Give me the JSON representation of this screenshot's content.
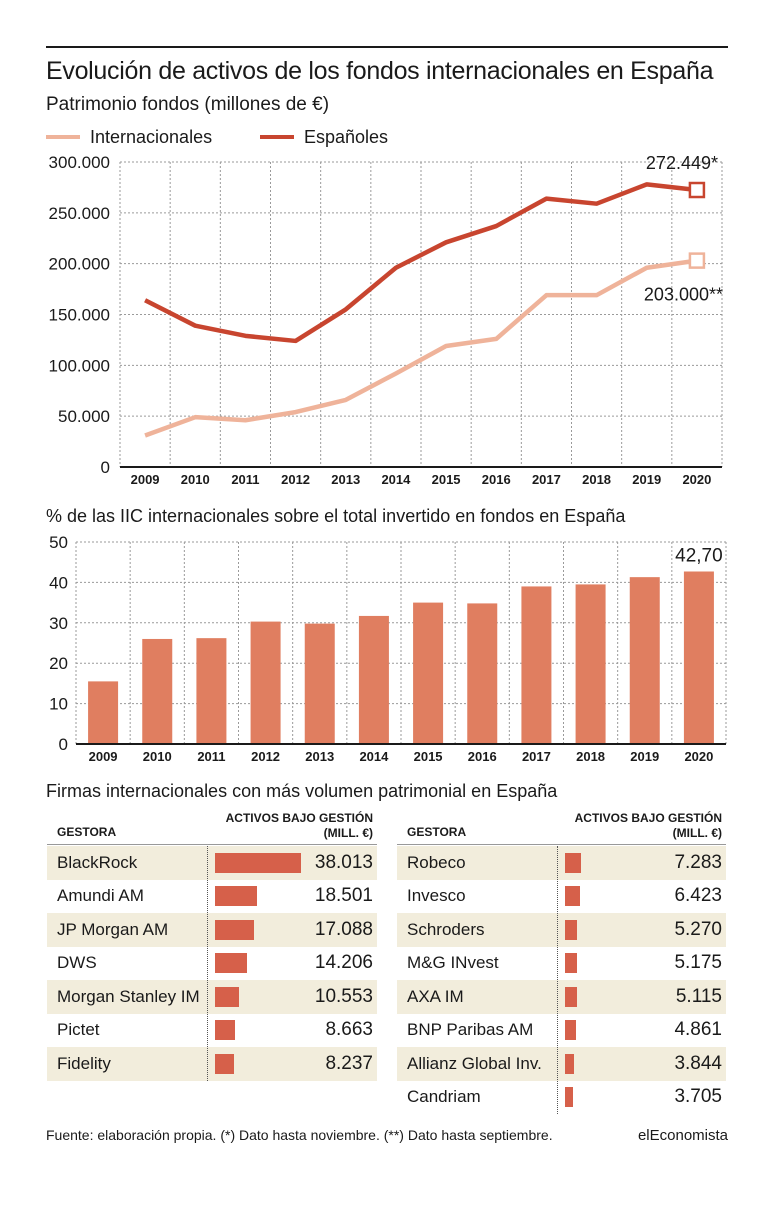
{
  "title": "Evolución de activos de los fondos internacionales en España",
  "subtitle": "Patrimonio fondos (millones de €)",
  "legend": {
    "internacionales": "Internacionales",
    "espanoles": "Españoles"
  },
  "colors": {
    "internacionales": "#efb39a",
    "espanoles": "#c8452f",
    "bar": "#e07e60",
    "table_bar": "#d6604a",
    "row_shade": "#f2eddc"
  },
  "chart_data": [
    {
      "type": "line",
      "title": "Patrimonio fondos (millones de €)",
      "x": [
        "2009",
        "2010",
        "2011",
        "2012",
        "2013",
        "2014",
        "2015",
        "2016",
        "2017",
        "2018",
        "2019",
        "2020"
      ],
      "ylim": [
        0,
        300000
      ],
      "yticks": [
        "0",
        "50.000",
        "100.000",
        "150.000",
        "200.000",
        "250.000",
        "300.000"
      ],
      "grid": true,
      "legend_position": "top-left",
      "series": [
        {
          "name": "Internacionales",
          "values": [
            31000,
            49000,
            46000,
            54000,
            66000,
            92000,
            119000,
            126000,
            169000,
            169000,
            196000,
            203000
          ]
        },
        {
          "name": "Españoles",
          "values": [
            164000,
            139000,
            129000,
            124000,
            155000,
            196000,
            221000,
            237000,
            264000,
            259000,
            278000,
            272449
          ]
        }
      ],
      "annotations": [
        {
          "series": "Españoles",
          "x": "2020",
          "text": "272.449*"
        },
        {
          "series": "Internacionales",
          "x": "2020",
          "text": "203.000**"
        }
      ]
    },
    {
      "type": "bar",
      "title": "% de las IIC internacionales sobre el total invertido en fondos en España",
      "categories": [
        "2009",
        "2010",
        "2011",
        "2012",
        "2013",
        "2014",
        "2015",
        "2016",
        "2017",
        "2018",
        "2019",
        "2020"
      ],
      "values": [
        15.5,
        26,
        26.2,
        30.3,
        29.8,
        31.7,
        35,
        34.8,
        39,
        39.5,
        41.3,
        42.7
      ],
      "ylim": [
        0,
        50
      ],
      "yticks": [
        "0",
        "10",
        "20",
        "30",
        "40",
        "50"
      ],
      "grid": true,
      "annotations": [
        {
          "x": "2020",
          "text": "42,70"
        }
      ]
    },
    {
      "type": "table",
      "title": "Firmas internacionales con más volumen patrimonial en España",
      "columns": [
        "GESTORA",
        "ACTIVOS BAJO GESTIÓN (MILL. €)"
      ],
      "column_header_lines": [
        "ACTIVOS BAJO GESTIÓN",
        "(MILL. €)"
      ],
      "max_value": 38013,
      "left": [
        {
          "name": "BlackRock",
          "value": 38013,
          "label": "38.013"
        },
        {
          "name": "Amundi AM",
          "value": 18501,
          "label": "18.501"
        },
        {
          "name": "JP Morgan AM",
          "value": 17088,
          "label": "17.088"
        },
        {
          "name": "DWS",
          "value": 14206,
          "label": "14.206"
        },
        {
          "name": "Morgan Stanley IM",
          "value": 10553,
          "label": "10.553"
        },
        {
          "name": "Pictet",
          "value": 8663,
          "label": "8.663"
        },
        {
          "name": "Fidelity",
          "value": 8237,
          "label": "8.237"
        }
      ],
      "right": [
        {
          "name": "Robeco",
          "value": 7283,
          "label": "7.283"
        },
        {
          "name": "Invesco",
          "value": 6423,
          "label": "6.423"
        },
        {
          "name": "Schroders",
          "value": 5270,
          "label": "5.270"
        },
        {
          "name": "M&G INvest",
          "value": 5175,
          "label": "5.175"
        },
        {
          "name": "AXA IM",
          "value": 5115,
          "label": "5.115"
        },
        {
          "name": "BNP Paribas AM",
          "value": 4861,
          "label": "4.861"
        },
        {
          "name": "Allianz Global Inv.",
          "value": 3844,
          "label": "3.844"
        },
        {
          "name": "Candriam",
          "value": 3705,
          "label": "3.705"
        }
      ]
    }
  ],
  "footer": "Fuente: elaboración propia. (*) Dato hasta noviembre. (**) Dato hasta septiembre.",
  "brand": "elEconomista"
}
